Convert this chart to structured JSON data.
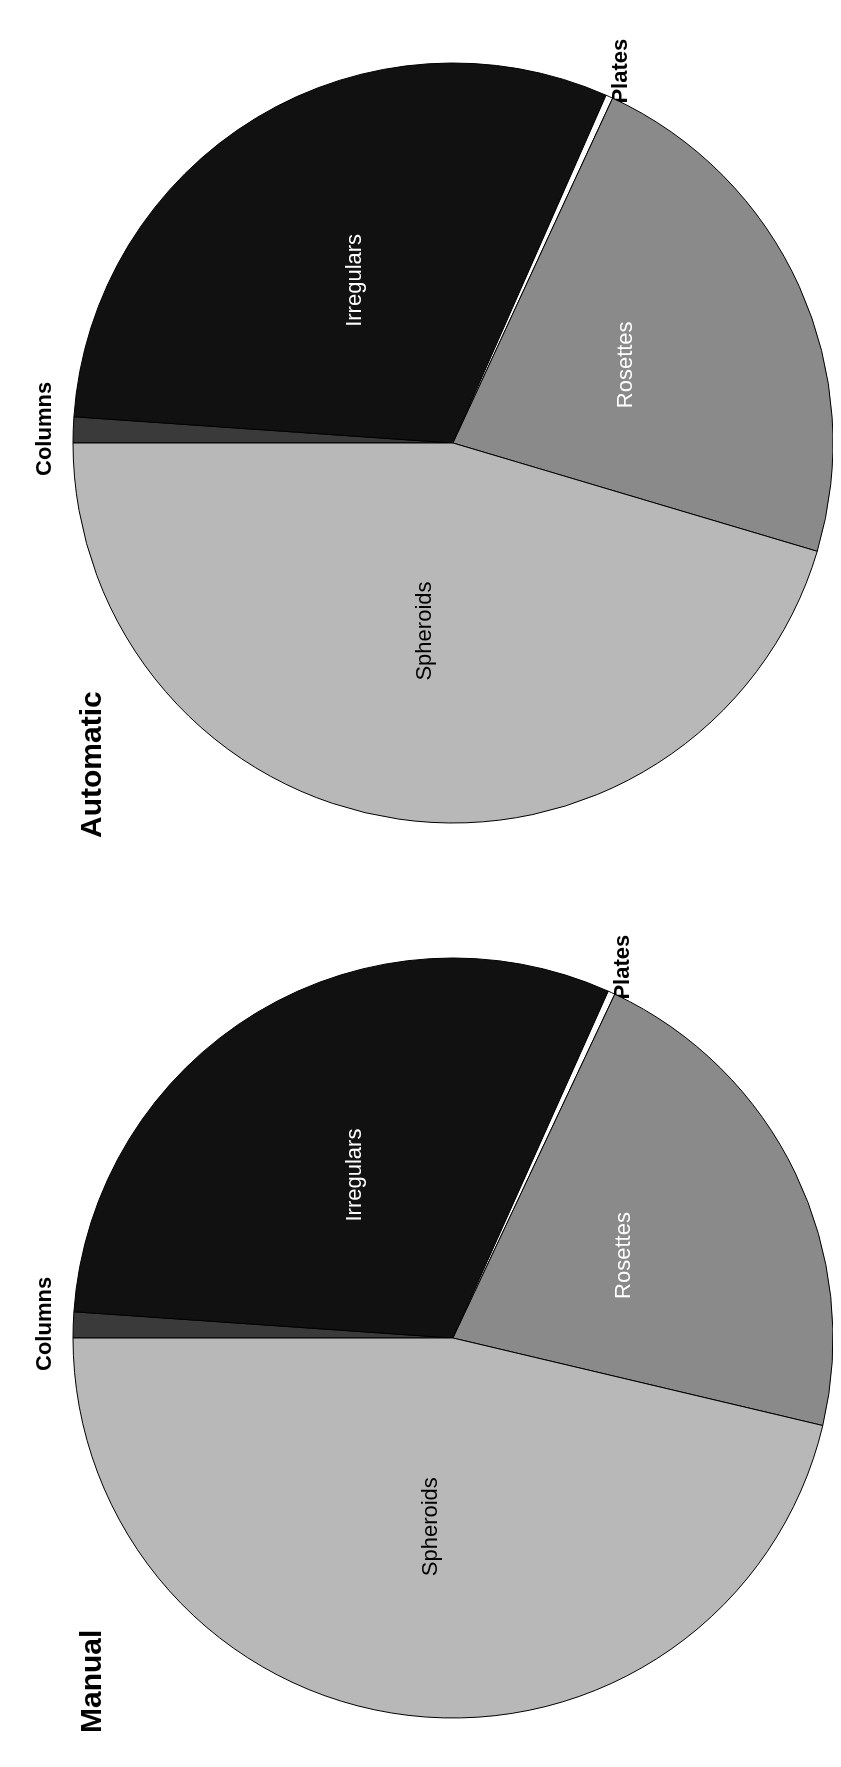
{
  "chart_data": [
    {
      "type": "pie",
      "title": "Manual",
      "categories": [
        "Columns",
        "Irregulars",
        "Plates",
        "Rosettes",
        "Spheroids"
      ],
      "values": [
        1.1,
        30.6,
        0.3,
        21.7,
        46.3
      ],
      "colors": [
        "#3a3a3a",
        "#111111",
        "#ffffff",
        "#8a8a8a",
        "#b8b8b8"
      ]
    },
    {
      "type": "pie",
      "title": "Automatic",
      "categories": [
        "Columns",
        "Irregulars",
        "Plates",
        "Rosettes",
        "Spheroids"
      ],
      "values": [
        1.1,
        30.5,
        0.3,
        22.7,
        45.4
      ],
      "colors": [
        "#3a3a3a",
        "#111111",
        "#ffffff",
        "#8a8a8a",
        "#b8b8b8"
      ]
    }
  ]
}
